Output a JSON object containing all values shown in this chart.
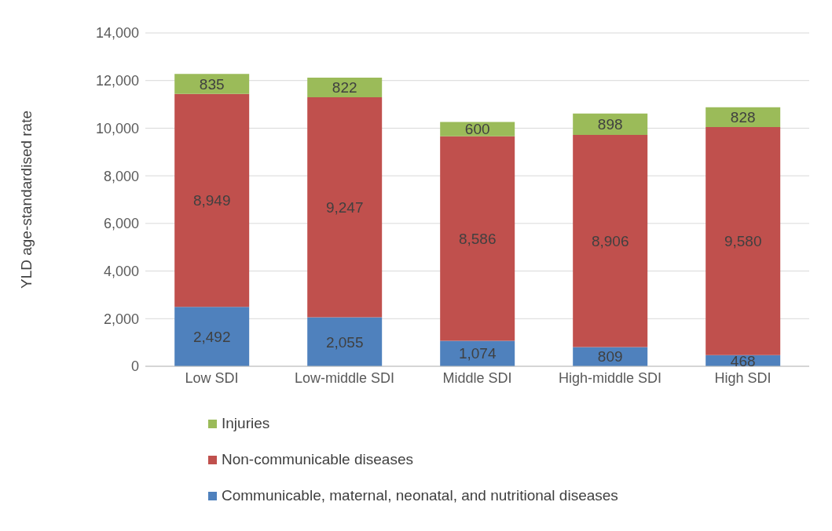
{
  "chart_data": {
    "type": "bar",
    "stacked": true,
    "ylabel": "YLD age-standardised rate",
    "categories": [
      "Low SDI",
      "Low-middle SDI",
      "Middle SDI",
      "High-middle SDI",
      "High SDI"
    ],
    "series": [
      {
        "name": "Communicable, maternal, neonatal, and nutritional diseases",
        "color": "#4f81bd",
        "values": [
          2492,
          2055,
          1074,
          809,
          468
        ],
        "value_labels": [
          "2,492",
          "2,055",
          "1,074",
          "809",
          "468"
        ]
      },
      {
        "name": "Non-communicable diseases",
        "color": "#c0504d",
        "values": [
          8949,
          9247,
          8586,
          8906,
          9580
        ],
        "value_labels": [
          "8,949",
          "9,247",
          "8,586",
          "8,906",
          "9,580"
        ]
      },
      {
        "name": "Injuries",
        "color": "#9bbb59",
        "values": [
          835,
          822,
          600,
          898,
          828
        ],
        "value_labels": [
          "835",
          "822",
          "600",
          "898",
          "828"
        ]
      }
    ],
    "ylim": [
      0,
      14000
    ],
    "yticks": [
      {
        "value": 0,
        "label": "0"
      },
      {
        "value": 2000,
        "label": "2,000"
      },
      {
        "value": 4000,
        "label": "4,000"
      },
      {
        "value": 6000,
        "label": "6,000"
      },
      {
        "value": 8000,
        "label": "8,000"
      },
      {
        "value": 10000,
        "label": "10,000"
      },
      {
        "value": 12000,
        "label": "12,000"
      },
      {
        "value": 14000,
        "label": "14,000"
      }
    ],
    "grid": "y",
    "legend": "bottom"
  }
}
